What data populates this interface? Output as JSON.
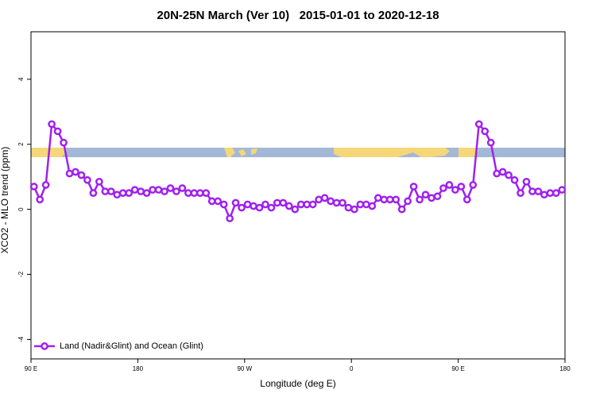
{
  "chart_data": {
    "type": "line",
    "title": "20N-25N March (Ver 10)   2015-01-01 to 2020-12-18",
    "x_label": "Longitude (deg E)",
    "y_label": "XCO2 - MLO trend (ppm)",
    "xlim": [
      90,
      540
    ],
    "ylim": [
      -4.6,
      5.46
    ],
    "xticks": [
      {
        "value": 90,
        "label": "90 E"
      },
      180,
      {
        "value": 270,
        "label": "90 W"
      },
      {
        "value": 360,
        "label": "0"
      },
      {
        "value": 450,
        "label": "90 E"
      },
      {
        "value": 540,
        "label": "180"
      }
    ],
    "yticks": [
      -4,
      -2,
      0,
      2,
      4
    ],
    "legend": "bottomleft",
    "x": [
      92.5,
      97.5,
      102.5,
      107.5,
      112.5,
      117.5,
      122.5,
      127.5,
      132.5,
      137.5,
      142.5,
      147.5,
      152.5,
      157.5,
      162.5,
      167.5,
      172.5,
      177.5,
      182.5,
      187.5,
      192.5,
      197.5,
      202.5,
      207.5,
      212.5,
      217.5,
      222.5,
      227.5,
      232.5,
      237.5,
      242.5,
      247.5,
      252.5,
      257.5,
      262.5,
      267.5,
      272.5,
      277.5,
      282.5,
      287.5,
      292.5,
      297.5,
      302.5,
      307.5,
      312.5,
      317.5,
      322.5,
      327.5,
      332.5,
      337.5,
      342.5,
      347.5,
      352.5,
      357.5,
      362.5,
      367.5,
      372.5,
      377.5,
      382.5,
      387.5,
      392.5,
      397.5,
      402.5,
      407.5,
      412.5,
      417.5,
      422.5,
      427.5,
      432.5,
      437.5,
      442.5,
      447.5,
      452.5,
      457.5,
      462.5,
      467.5,
      472.5,
      477.5,
      482.5,
      487.5,
      492.5,
      497.5,
      502.5,
      507.5,
      512.5,
      517.5,
      522.5,
      527.5,
      532.5,
      537.5
    ],
    "series": [
      {
        "name": "Land (Nadir&Glint) and Ocean (Glint)",
        "color": "#a020f0",
        "values": [
          0.7,
          0.3,
          0.75,
          2.62,
          2.4,
          2.05,
          1.1,
          1.15,
          1.05,
          0.9,
          0.5,
          0.85,
          0.55,
          0.55,
          0.45,
          0.5,
          0.5,
          0.6,
          0.55,
          0.5,
          0.6,
          0.6,
          0.55,
          0.65,
          0.55,
          0.65,
          0.5,
          0.5,
          0.5,
          0.5,
          0.25,
          0.25,
          0.15,
          -0.28,
          0.2,
          0.05,
          0.15,
          0.1,
          0.05,
          0.15,
          0.05,
          0.2,
          0.2,
          0.1,
          0.0,
          0.15,
          0.15,
          0.15,
          0.3,
          0.35,
          0.25,
          0.2,
          0.2,
          0.05,
          0.0,
          0.15,
          0.15,
          0.1,
          0.35,
          0.3,
          0.3,
          0.3,
          0.0,
          0.25,
          0.7,
          0.3,
          0.45,
          0.35,
          0.4,
          0.65,
          0.75,
          0.6,
          0.7,
          0.3,
          0.75,
          2.62,
          2.4,
          2.05,
          1.1,
          1.15,
          1.05,
          0.9,
          0.5,
          0.85,
          0.55,
          0.55,
          0.45,
          0.5,
          0.5,
          0.6
        ]
      }
    ]
  }
}
